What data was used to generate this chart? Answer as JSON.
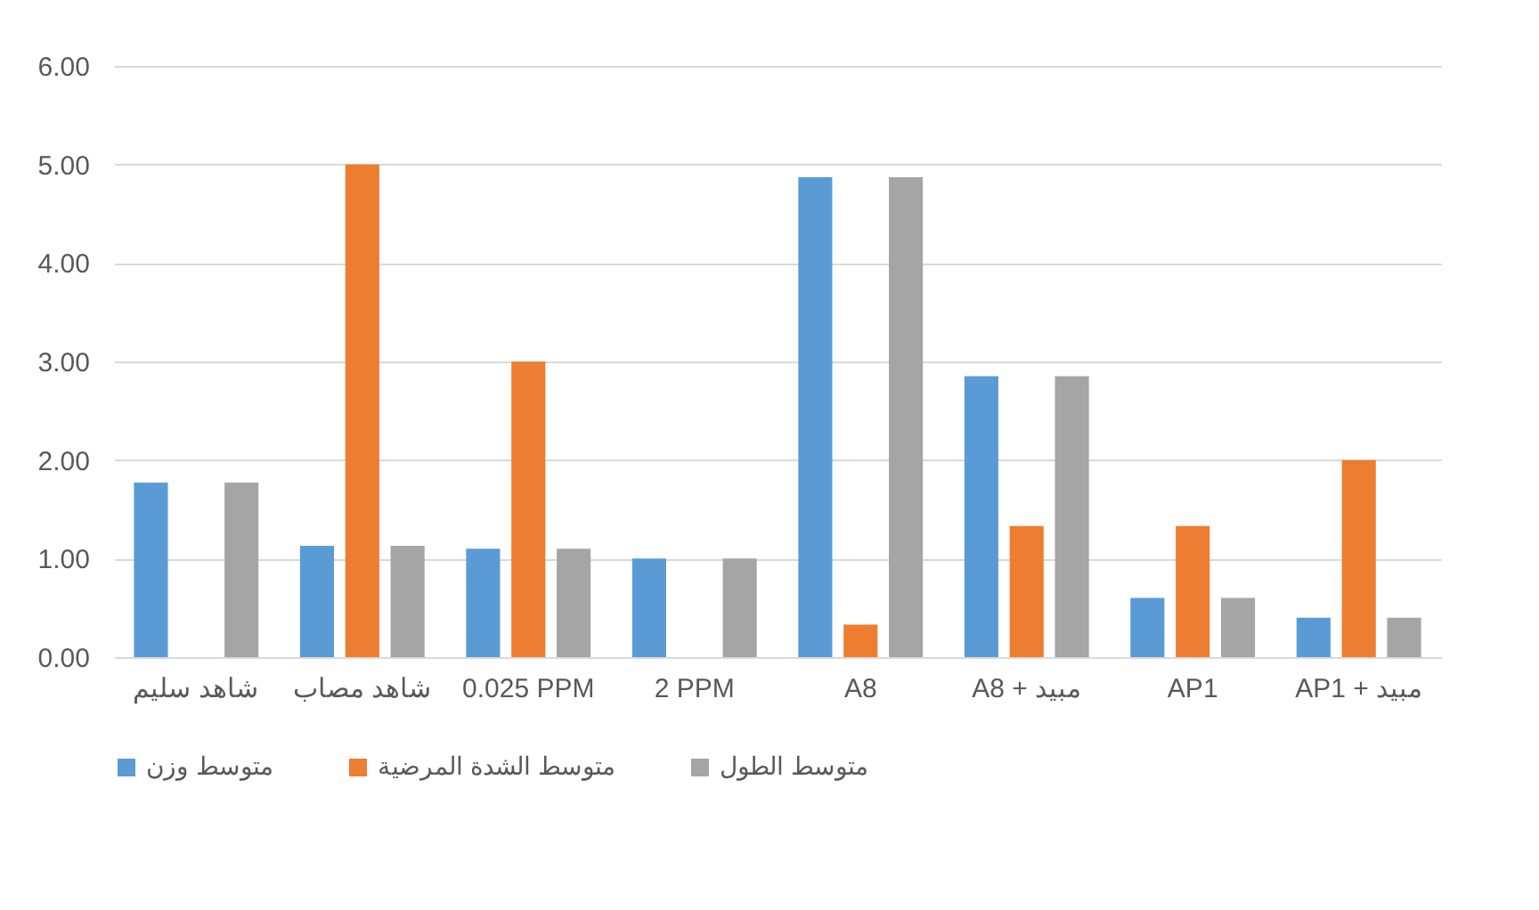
{
  "chart_data": {
    "type": "bar",
    "categories": [
      "شاهد سليم",
      "شاهد مصاب",
      "0.025 PPM",
      "2 PPM",
      "A8",
      "A8 + مبيد",
      "AP1",
      "AP1 + مبيد"
    ],
    "series": [
      {
        "name": "متوسط وزن",
        "color": "#5b9bd5",
        "values": [
          1.77,
          1.13,
          1.1,
          1.0,
          4.87,
          2.85,
          0.6,
          0.4
        ]
      },
      {
        "name": "متوسط الشدة المرضية",
        "color": "#ed7d31",
        "values": [
          null,
          5.0,
          3.0,
          null,
          0.33,
          1.33,
          1.33,
          2.0
        ]
      },
      {
        "name": "متوسط الطول",
        "color": "#a5a5a5",
        "values": [
          1.77,
          1.13,
          1.1,
          1.0,
          4.87,
          2.85,
          0.6,
          0.4
        ]
      }
    ],
    "ylim": [
      0,
      6
    ],
    "yticks": [
      {
        "value": 0,
        "label": "0.00"
      },
      {
        "value": 1,
        "label": "1.00"
      },
      {
        "value": 2,
        "label": "2.00"
      },
      {
        "value": 3,
        "label": "3.00"
      },
      {
        "value": 4,
        "label": "4.00"
      },
      {
        "value": 5,
        "label": "5.00"
      },
      {
        "value": 6,
        "label": "6.00"
      }
    ],
    "grid": "y",
    "legend": "bottom"
  }
}
